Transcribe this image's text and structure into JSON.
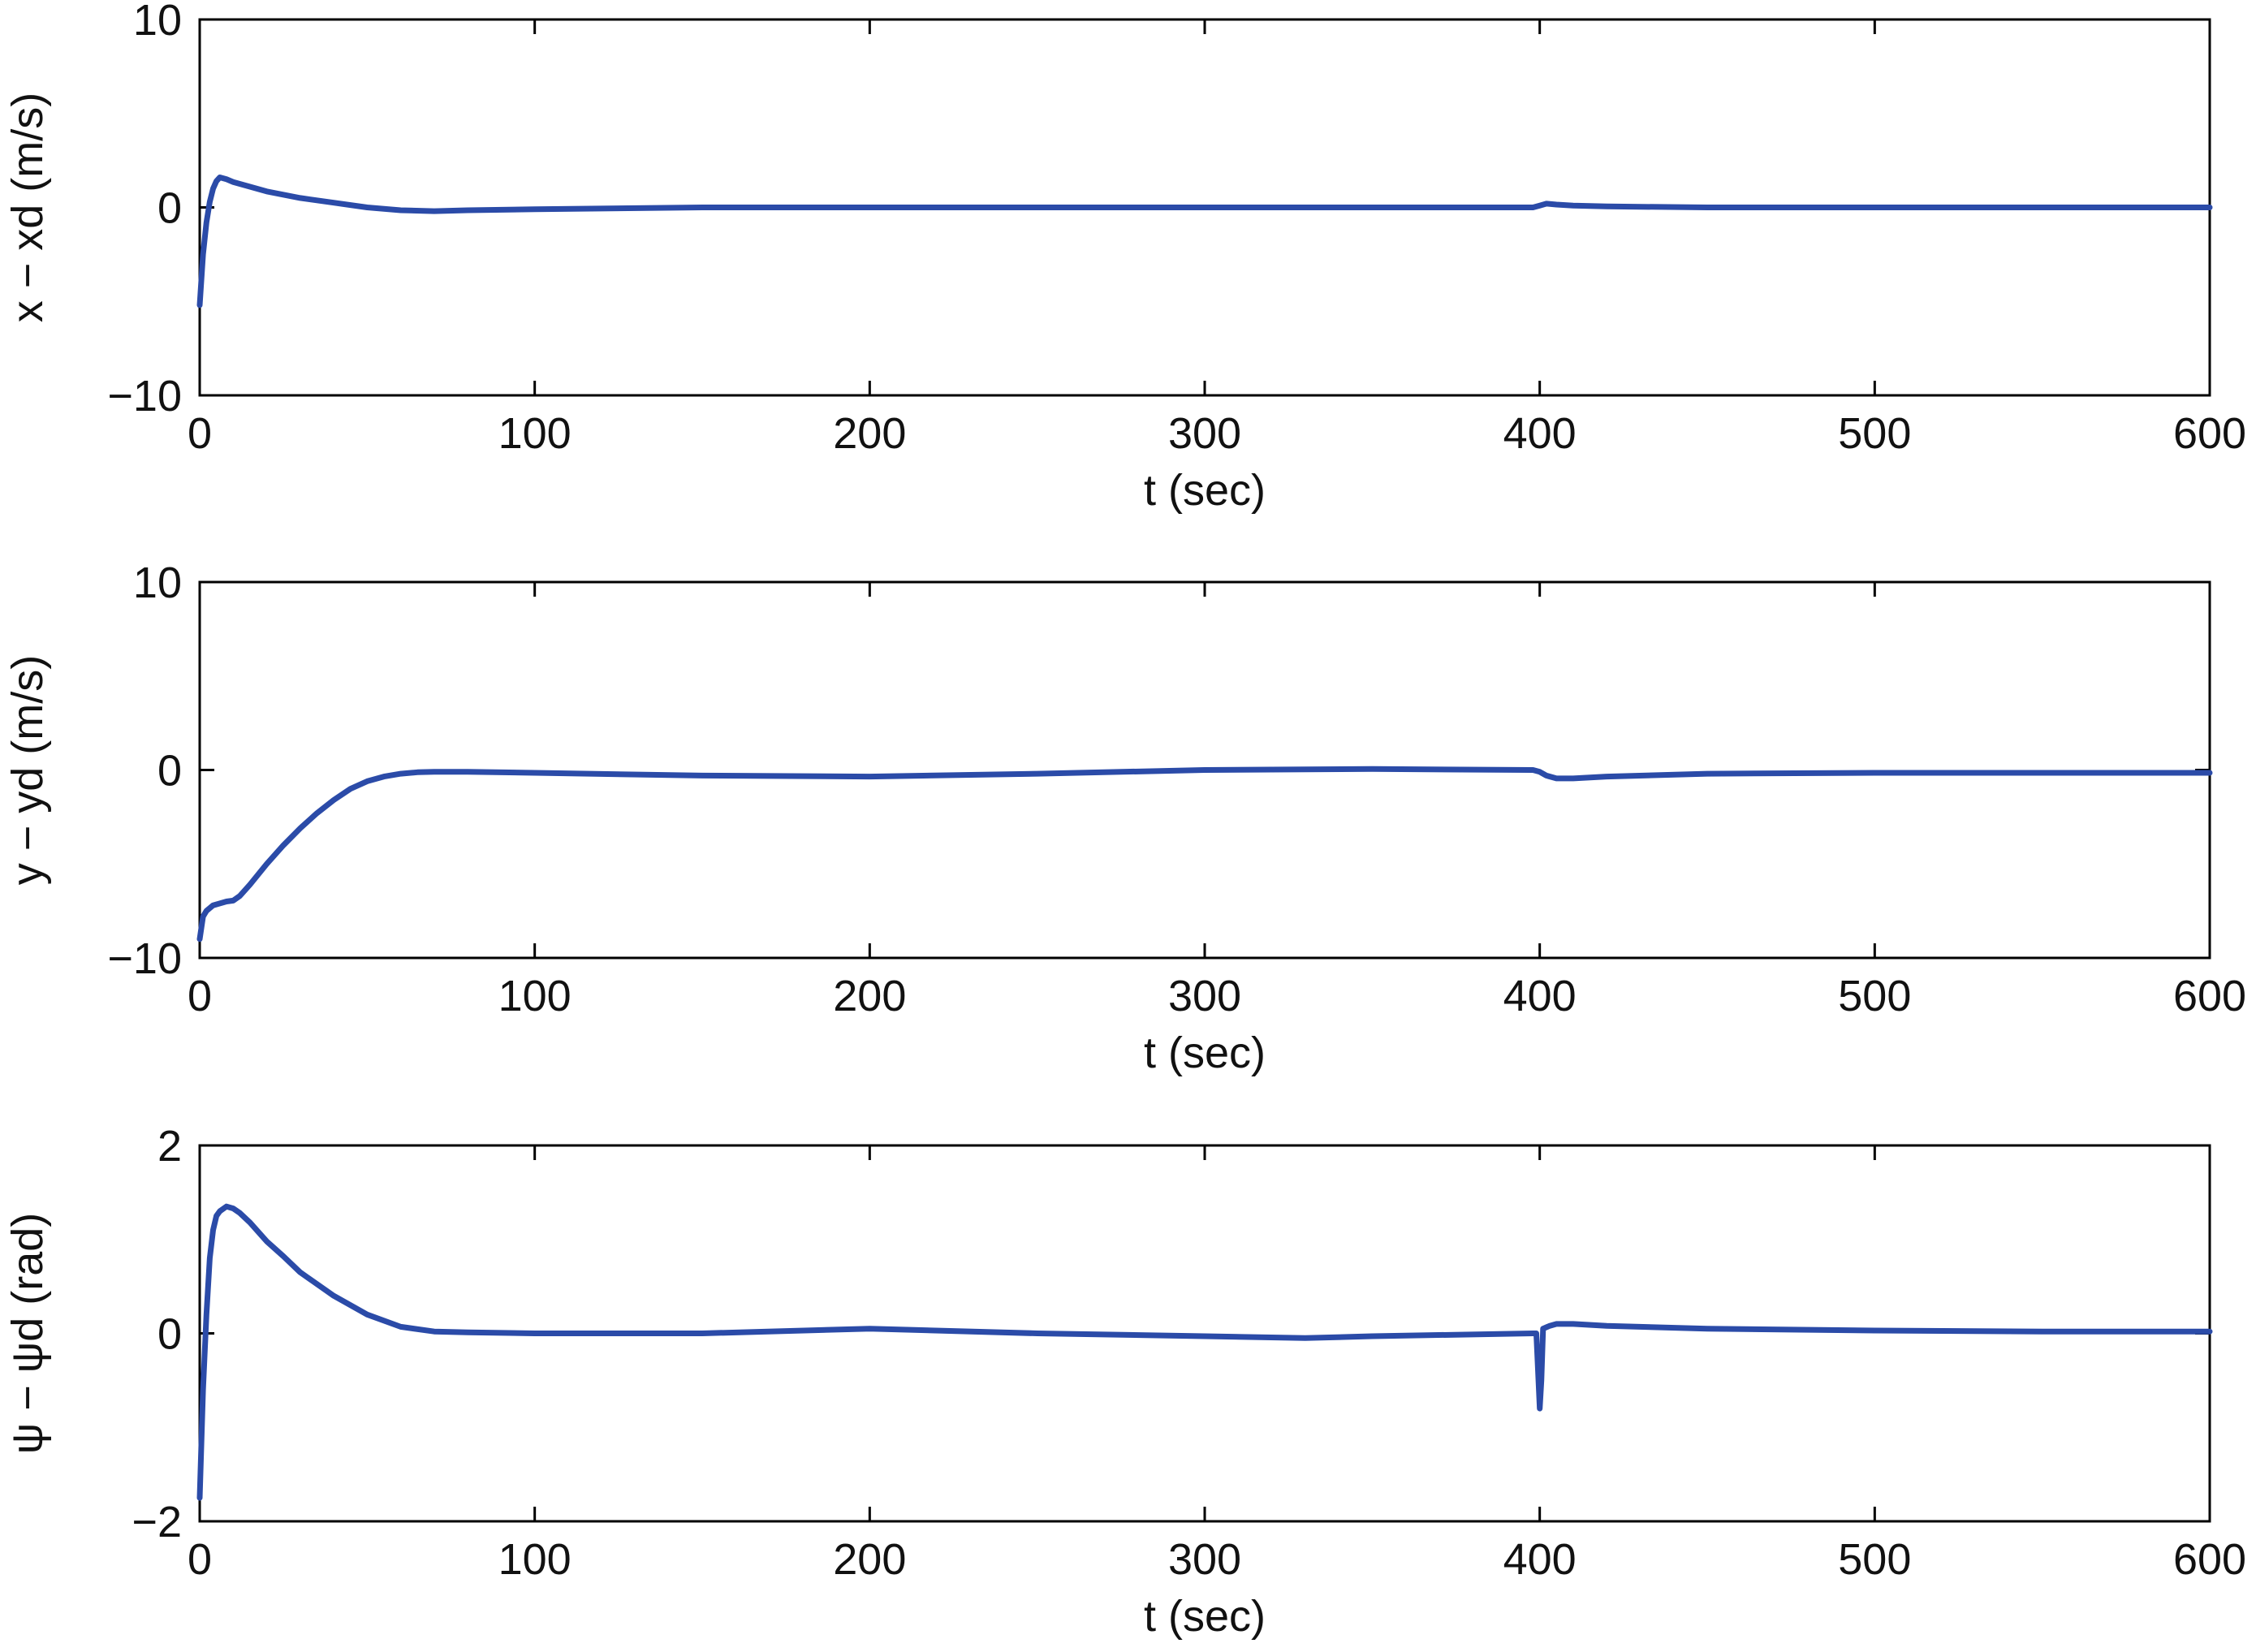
{
  "chart_data": [
    {
      "type": "line",
      "xlabel": "t (sec)",
      "ylabel": "x − xd (m/s)",
      "xlim": [
        0,
        600
      ],
      "ylim": [
        -10,
        10
      ],
      "xticks": [
        "0",
        "100",
        "200",
        "300",
        "400",
        "500",
        "600"
      ],
      "yticks": [
        "10",
        "0",
        "−10"
      ],
      "grid": false,
      "color": "#2b4ba8",
      "series": [
        {
          "x": [
            0,
            1,
            2,
            3,
            4,
            5,
            6,
            8,
            10,
            15,
            20,
            30,
            40,
            50,
            60,
            70,
            80,
            100,
            150,
            200,
            300,
            350,
            398,
            400,
            402,
            405,
            410,
            420,
            450,
            500,
            550,
            600
          ],
          "y": [
            -5.2,
            -2.5,
            -0.8,
            0.3,
            1.0,
            1.4,
            1.6,
            1.5,
            1.35,
            1.1,
            0.85,
            0.5,
            0.25,
            0.0,
            -0.15,
            -0.2,
            -0.15,
            -0.1,
            0.0,
            0.0,
            0.0,
            0.0,
            0.0,
            0.1,
            0.2,
            0.15,
            0.1,
            0.05,
            0.0,
            0.0,
            0.0,
            0.0
          ]
        }
      ]
    },
    {
      "type": "line",
      "xlabel": "t (sec)",
      "ylabel": "y − yd (m/s)",
      "xlim": [
        0,
        600
      ],
      "ylim": [
        -10,
        10
      ],
      "xticks": [
        "0",
        "100",
        "200",
        "300",
        "400",
        "500",
        "600"
      ],
      "yticks": [
        "10",
        "0",
        "−10"
      ],
      "grid": false,
      "color": "#2b4ba8",
      "series": [
        {
          "x": [
            0,
            1,
            2,
            4,
            6,
            8,
            10,
            12,
            15,
            20,
            25,
            30,
            35,
            40,
            45,
            50,
            55,
            60,
            65,
            70,
            80,
            100,
            150,
            200,
            250,
            300,
            350,
            398,
            400,
            402,
            405,
            410,
            420,
            450,
            500,
            550,
            600
          ],
          "y": [
            -9.0,
            -7.8,
            -7.5,
            -7.2,
            -7.1,
            -7.0,
            -6.95,
            -6.7,
            -6.1,
            -5.0,
            -4.0,
            -3.1,
            -2.3,
            -1.6,
            -1.0,
            -0.6,
            -0.35,
            -0.2,
            -0.12,
            -0.1,
            -0.1,
            -0.15,
            -0.3,
            -0.35,
            -0.2,
            0.0,
            0.05,
            0.0,
            -0.1,
            -0.3,
            -0.45,
            -0.45,
            -0.35,
            -0.2,
            -0.15,
            -0.15,
            -0.15
          ]
        }
      ]
    },
    {
      "type": "line",
      "xlabel": "t (sec)",
      "ylabel": "ψ − ψd (rad)",
      "xlim": [
        0,
        600
      ],
      "ylim": [
        -2,
        2
      ],
      "xticks": [
        "0",
        "100",
        "200",
        "300",
        "400",
        "500",
        "600"
      ],
      "yticks": [
        "2",
        "0",
        "−2"
      ],
      "grid": false,
      "color": "#2b4ba8",
      "series": [
        {
          "x": [
            0,
            1,
            2,
            3,
            4,
            5,
            6,
            8,
            10,
            12,
            15,
            20,
            25,
            30,
            40,
            50,
            60,
            70,
            80,
            100,
            150,
            200,
            250,
            300,
            330,
            350,
            398,
            399,
            400,
            400.5,
            401,
            403,
            405,
            410,
            420,
            450,
            500,
            550,
            600
          ],
          "y": [
            -1.75,
            -0.6,
            0.2,
            0.8,
            1.1,
            1.25,
            1.3,
            1.35,
            1.33,
            1.28,
            1.18,
            0.98,
            0.82,
            0.65,
            0.4,
            0.2,
            0.07,
            0.02,
            0.01,
            0.0,
            0.0,
            0.05,
            0.0,
            -0.03,
            -0.05,
            -0.03,
            0.0,
            0.0,
            -0.8,
            -0.5,
            0.05,
            0.08,
            0.1,
            0.1,
            0.08,
            0.05,
            0.03,
            0.02,
            0.02
          ]
        }
      ]
    }
  ]
}
